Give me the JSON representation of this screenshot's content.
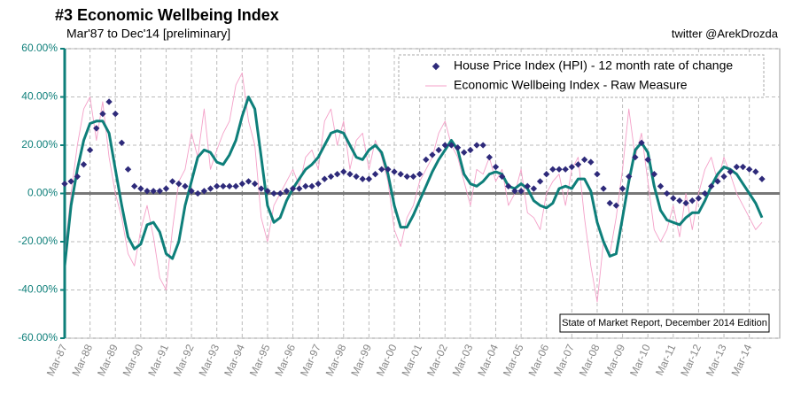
{
  "chart_data": {
    "type": "line",
    "title": "#3 Economic Wellbeing Index",
    "subtitle": "Mar'87 to Dec'14 [preliminary]",
    "credit": "twitter @ArekDrozda",
    "annotation": "State of Market Report, December 2014 Edition",
    "x": [
      1987,
      1987.25,
      1987.5,
      1987.75,
      1988,
      1988.25,
      1988.5,
      1988.75,
      1989,
      1989.25,
      1989.5,
      1989.75,
      1990,
      1990.25,
      1990.5,
      1990.75,
      1991,
      1991.25,
      1991.5,
      1991.75,
      1992,
      1992.25,
      1992.5,
      1992.75,
      1993,
      1993.25,
      1993.5,
      1993.75,
      1994,
      1994.25,
      1994.5,
      1994.75,
      1995,
      1995.25,
      1995.5,
      1995.75,
      1996,
      1996.25,
      1996.5,
      1996.75,
      1997,
      1997.25,
      1997.5,
      1997.75,
      1998,
      1998.25,
      1998.5,
      1998.75,
      1999,
      1999.25,
      1999.5,
      1999.75,
      2000,
      2000.25,
      2000.5,
      2000.75,
      2001,
      2001.25,
      2001.5,
      2001.75,
      2002,
      2002.25,
      2002.5,
      2002.75,
      2003,
      2003.25,
      2003.5,
      2003.75,
      2004,
      2004.25,
      2004.5,
      2004.75,
      2005,
      2005.25,
      2005.5,
      2005.75,
      2006,
      2006.25,
      2006.5,
      2006.75,
      2007,
      2007.25,
      2007.5,
      2007.75,
      2008,
      2008.25,
      2008.5,
      2008.75,
      2009,
      2009.25,
      2009.5,
      2009.75,
      2010,
      2010.25,
      2010.5,
      2010.75,
      2011,
      2011.25,
      2011.5,
      2011.75,
      2012,
      2012.25,
      2012.5,
      2012.75,
      2013,
      2013.25,
      2013.5,
      2013.75,
      2014,
      2014.25,
      2014.5
    ],
    "series": [
      {
        "name": "House Price Index (HPI) - 12 month rate of change",
        "kind": "markers",
        "color": "#2e2a7a",
        "values": [
          4,
          5,
          7,
          12,
          18,
          27,
          33,
          38,
          33,
          21,
          10,
          3,
          2,
          1,
          1,
          1,
          2,
          5,
          4,
          3,
          1,
          0,
          1,
          2,
          3,
          3,
          3,
          3,
          4,
          5,
          4,
          2,
          1,
          0,
          0,
          1,
          2,
          2,
          3,
          3,
          4,
          6,
          7,
          8,
          9,
          8,
          7,
          6,
          6,
          8,
          10,
          10,
          9,
          8,
          7,
          7,
          8,
          14,
          16,
          18,
          20,
          20,
          19,
          17,
          18,
          20,
          20,
          15,
          11,
          7,
          3,
          1,
          1,
          3,
          2,
          5,
          8,
          10,
          10,
          10,
          11,
          12,
          14,
          13,
          8,
          2,
          -4,
          -5,
          2,
          7,
          15,
          21,
          14,
          8,
          3,
          0,
          -2,
          -3,
          -4,
          -3,
          -2,
          0,
          3,
          5,
          7,
          9,
          11,
          11,
          10,
          9,
          6
        ]
      },
      {
        "name": "Economic Wellbeing Index - Raw Measure",
        "kind": "thin",
        "color": "#f4a0c8",
        "values": [
          -25,
          0,
          20,
          35,
          40,
          22,
          38,
          15,
          0,
          -10,
          -25,
          -30,
          -15,
          -5,
          -18,
          -35,
          -40,
          -15,
          5,
          10,
          25,
          15,
          35,
          10,
          18,
          25,
          30,
          45,
          50,
          30,
          20,
          -10,
          -20,
          -5,
          0,
          5,
          10,
          3,
          15,
          18,
          10,
          30,
          35,
          20,
          30,
          10,
          22,
          25,
          10,
          22,
          15,
          5,
          -15,
          -22,
          -10,
          -5,
          5,
          10,
          15,
          25,
          30,
          20,
          15,
          5,
          -5,
          10,
          8,
          15,
          5,
          10,
          -5,
          0,
          10,
          -8,
          -10,
          -15,
          0,
          5,
          8,
          -5,
          10,
          15,
          -10,
          -30,
          -45,
          -20,
          -25,
          -10,
          10,
          35,
          15,
          25,
          5,
          -15,
          -20,
          -15,
          -5,
          -18,
          0,
          -15,
          0,
          10,
          15,
          5,
          15,
          8,
          0,
          -5,
          -10,
          -15,
          -12
        ]
      },
      {
        "name": "Economic Wellbeing Index",
        "kind": "thick",
        "color": "#0e7f7a",
        "values": [
          -30,
          -5,
          10,
          22,
          29,
          30,
          30,
          25,
          10,
          -5,
          -18,
          -23,
          -21,
          -13,
          -12,
          -16,
          -25,
          -27,
          -20,
          -5,
          5,
          15,
          18,
          17,
          13,
          12,
          16,
          22,
          32,
          40,
          35,
          15,
          -5,
          -12,
          -10,
          -3,
          2,
          6,
          10,
          12,
          15,
          20,
          25,
          26,
          25,
          20,
          15,
          14,
          18,
          20,
          17,
          8,
          -5,
          -14,
          -14,
          -9,
          -3,
          3,
          9,
          14,
          18,
          22,
          18,
          8,
          4,
          3,
          5,
          8,
          9,
          8,
          3,
          2,
          4,
          2,
          -3,
          -5,
          -6,
          -4,
          2,
          3,
          2,
          6,
          6,
          1,
          -12,
          -20,
          -26,
          -25,
          -10,
          5,
          18,
          21,
          17,
          3,
          -7,
          -11,
          -12,
          -13,
          -10,
          -8,
          -8,
          -3,
          3,
          8,
          11,
          10,
          8,
          4,
          0,
          -4,
          -10
        ]
      }
    ],
    "legend_series": [
      0,
      1
    ],
    "xlim": [
      1987,
      2015.2
    ],
    "xticks": [
      {
        "value": 1987,
        "label": "Mar-87"
      },
      {
        "value": 1988,
        "label": "Mar-88"
      },
      {
        "value": 1989,
        "label": "Mar-89"
      },
      {
        "value": 1990,
        "label": "Mar-90"
      },
      {
        "value": 1991,
        "label": "Mar-91"
      },
      {
        "value": 1992,
        "label": "Mar-92"
      },
      {
        "value": 1993,
        "label": "Mar-93"
      },
      {
        "value": 1994,
        "label": "Mar-94"
      },
      {
        "value": 1995,
        "label": "Mar-95"
      },
      {
        "value": 1996,
        "label": "Mar-96"
      },
      {
        "value": 1997,
        "label": "Mar-97"
      },
      {
        "value": 1998,
        "label": "Mar-98"
      },
      {
        "value": 1999,
        "label": "Mar-99"
      },
      {
        "value": 2000,
        "label": "Mar-00"
      },
      {
        "value": 2001,
        "label": "Mar-01"
      },
      {
        "value": 2002,
        "label": "Mar-02"
      },
      {
        "value": 2003,
        "label": "Mar-03"
      },
      {
        "value": 2004,
        "label": "Mar-04"
      },
      {
        "value": 2005,
        "label": "Mar-05"
      },
      {
        "value": 2006,
        "label": "Mar-06"
      },
      {
        "value": 2007,
        "label": "Mar-07"
      },
      {
        "value": 2008,
        "label": "Mar-08"
      },
      {
        "value": 2009,
        "label": "Mar-09"
      },
      {
        "value": 2010,
        "label": "Mar-10"
      },
      {
        "value": 2011,
        "label": "Mar-11"
      },
      {
        "value": 2012,
        "label": "Mar-12"
      },
      {
        "value": 2013,
        "label": "Mar-13"
      },
      {
        "value": 2014,
        "label": "Mar-14"
      }
    ],
    "ylim": [
      -60,
      60
    ],
    "yticks": [
      {
        "value": -60,
        "label": "-60.00%"
      },
      {
        "value": -40,
        "label": "-40.00%"
      },
      {
        "value": -20,
        "label": "-20.00%"
      },
      {
        "value": 0,
        "label": "0.00%"
      },
      {
        "value": 20,
        "label": "20.00%"
      },
      {
        "value": 40,
        "label": "40.00%"
      },
      {
        "value": 60,
        "label": "60.00%"
      }
    ],
    "grid": true,
    "legend": "top-right"
  }
}
